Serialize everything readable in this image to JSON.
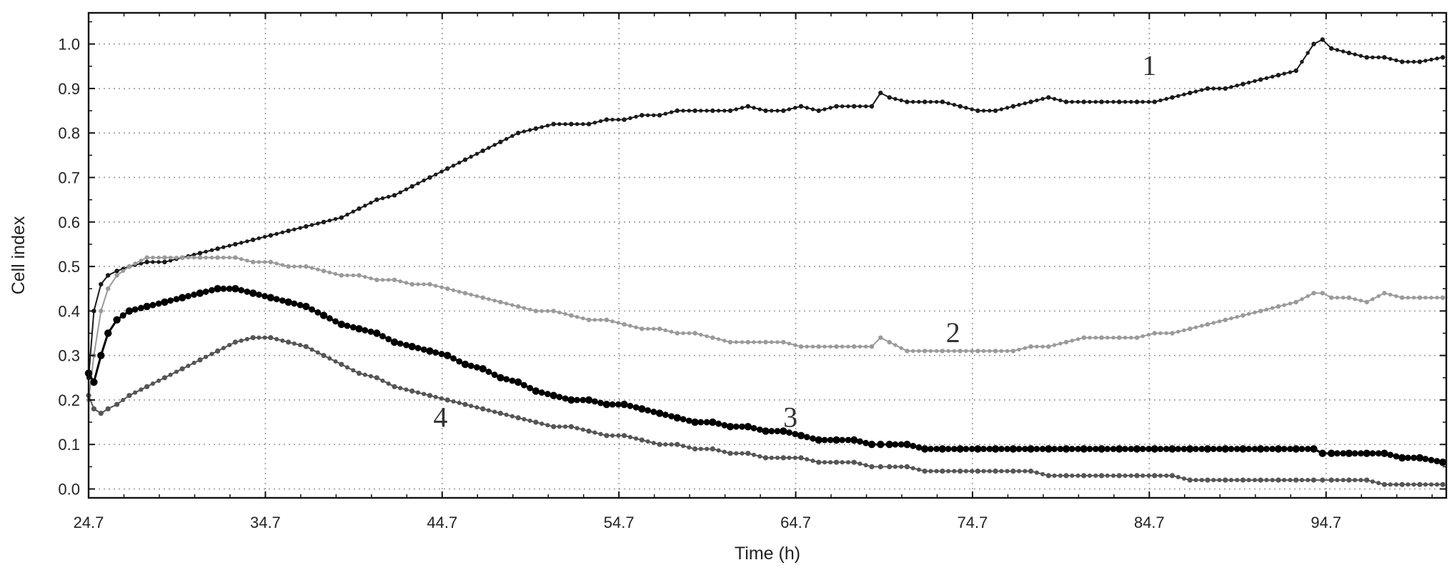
{
  "chart_data": {
    "type": "line",
    "title": "",
    "xlabel": "Time (h)",
    "ylabel": "Cell index",
    "xlim": [
      24.7,
      101.5
    ],
    "ylim": [
      -0.02,
      1.07
    ],
    "xticks": [
      24.7,
      34.7,
      44.7,
      54.7,
      64.7,
      74.7,
      84.7,
      94.7
    ],
    "xtick_labels": [
      "24.7",
      "34.7",
      "44.7",
      "54.7",
      "64.7",
      "74.7",
      "84.7",
      "94.7"
    ],
    "yticks": [
      0.0,
      0.1,
      0.2,
      0.3,
      0.4,
      0.5,
      0.6,
      0.7,
      0.8,
      0.9,
      1.0
    ],
    "ytick_labels": [
      "0.0",
      "0.1",
      "0.2",
      "0.3",
      "0.4",
      "0.5",
      "0.6",
      "0.7",
      "0.8",
      "0.9",
      "1.0"
    ],
    "grid": true,
    "legend": "none",
    "series": [
      {
        "label": "1",
        "label_at": [
          84.7,
          0.93
        ],
        "color": "#1a1a1a",
        "marker_size": 3.2,
        "stroke_width": 2,
        "x": [
          24.7,
          25.0,
          25.4,
          25.8,
          26.3,
          27.0,
          28.0,
          29.0,
          30.0,
          31.0,
          32.0,
          33.0,
          34.0,
          35.0,
          36.0,
          37.0,
          38.0,
          39.0,
          40.0,
          41.0,
          42.0,
          43.0,
          44.0,
          45.0,
          46.0,
          47.0,
          48.0,
          49.0,
          50.0,
          51.0,
          52.0,
          53.0,
          54.0,
          55.0,
          56.0,
          57.0,
          58.0,
          59.0,
          60.0,
          61.0,
          62.0,
          63.0,
          64.0,
          65.0,
          66.0,
          67.0,
          68.0,
          69.0,
          69.5,
          70.0,
          71.0,
          72.0,
          73.0,
          74.0,
          75.0,
          76.0,
          77.0,
          78.0,
          79.0,
          80.0,
          81.0,
          82.0,
          83.0,
          84.0,
          85.0,
          86.0,
          87.0,
          88.0,
          89.0,
          90.0,
          91.0,
          92.0,
          93.0,
          94.0,
          94.5,
          95.0,
          96.0,
          97.0,
          98.0,
          99.0,
          100.0,
          101.3
        ],
        "y": [
          0.25,
          0.4,
          0.46,
          0.48,
          0.49,
          0.5,
          0.51,
          0.51,
          0.52,
          0.53,
          0.54,
          0.55,
          0.56,
          0.57,
          0.58,
          0.59,
          0.6,
          0.61,
          0.63,
          0.65,
          0.66,
          0.68,
          0.7,
          0.72,
          0.74,
          0.76,
          0.78,
          0.8,
          0.81,
          0.82,
          0.82,
          0.82,
          0.83,
          0.83,
          0.84,
          0.84,
          0.85,
          0.85,
          0.85,
          0.85,
          0.86,
          0.85,
          0.85,
          0.86,
          0.85,
          0.86,
          0.86,
          0.86,
          0.89,
          0.88,
          0.87,
          0.87,
          0.87,
          0.86,
          0.85,
          0.85,
          0.86,
          0.87,
          0.88,
          0.87,
          0.87,
          0.87,
          0.87,
          0.87,
          0.87,
          0.88,
          0.89,
          0.9,
          0.9,
          0.91,
          0.92,
          0.93,
          0.94,
          1.0,
          1.01,
          0.99,
          0.98,
          0.97,
          0.97,
          0.96,
          0.96,
          0.97
        ]
      },
      {
        "label": "2",
        "label_at": [
          73.6,
          0.33
        ],
        "color": "#9a9a9a",
        "marker_size": 3.2,
        "stroke_width": 2,
        "x": [
          24.7,
          25.0,
          25.4,
          25.8,
          26.3,
          27.0,
          28.0,
          29.0,
          30.0,
          31.0,
          32.0,
          33.0,
          34.0,
          35.0,
          36.0,
          37.0,
          38.0,
          39.0,
          40.0,
          41.0,
          42.0,
          43.0,
          44.0,
          45.0,
          46.0,
          47.0,
          48.0,
          49.0,
          50.0,
          51.0,
          52.0,
          53.0,
          54.0,
          55.0,
          56.0,
          57.0,
          58.0,
          59.0,
          60.0,
          61.0,
          62.0,
          63.0,
          64.0,
          65.0,
          66.0,
          67.0,
          68.0,
          69.0,
          69.5,
          70.0,
          71.0,
          72.0,
          73.0,
          74.0,
          75.0,
          76.0,
          77.0,
          78.0,
          79.0,
          80.0,
          81.0,
          82.0,
          83.0,
          84.0,
          85.0,
          86.0,
          87.0,
          88.0,
          89.0,
          90.0,
          91.0,
          92.0,
          93.0,
          94.0,
          94.5,
          95.0,
          96.0,
          97.0,
          98.0,
          99.0,
          100.0,
          101.3
        ],
        "y": [
          0.2,
          0.3,
          0.4,
          0.45,
          0.48,
          0.5,
          0.52,
          0.52,
          0.52,
          0.52,
          0.52,
          0.52,
          0.51,
          0.51,
          0.5,
          0.5,
          0.49,
          0.48,
          0.48,
          0.47,
          0.47,
          0.46,
          0.46,
          0.45,
          0.44,
          0.43,
          0.42,
          0.41,
          0.4,
          0.4,
          0.39,
          0.38,
          0.38,
          0.37,
          0.36,
          0.36,
          0.35,
          0.35,
          0.34,
          0.33,
          0.33,
          0.33,
          0.33,
          0.32,
          0.32,
          0.32,
          0.32,
          0.32,
          0.34,
          0.33,
          0.31,
          0.31,
          0.31,
          0.31,
          0.31,
          0.31,
          0.31,
          0.32,
          0.32,
          0.33,
          0.34,
          0.34,
          0.34,
          0.34,
          0.35,
          0.35,
          0.36,
          0.37,
          0.38,
          0.39,
          0.4,
          0.41,
          0.42,
          0.44,
          0.44,
          0.43,
          0.43,
          0.42,
          0.44,
          0.43,
          0.43,
          0.43
        ]
      },
      {
        "label": "3",
        "label_at": [
          64.4,
          0.14
        ],
        "color": "#000000",
        "marker_size": 5.2,
        "stroke_width": 3,
        "x": [
          24.7,
          25.0,
          25.4,
          25.8,
          26.3,
          27.0,
          28.0,
          29.0,
          30.0,
          31.0,
          32.0,
          33.0,
          34.0,
          35.0,
          36.0,
          37.0,
          38.0,
          39.0,
          40.0,
          41.0,
          42.0,
          43.0,
          44.0,
          45.0,
          46.0,
          47.0,
          48.0,
          49.0,
          50.0,
          51.0,
          52.0,
          53.0,
          54.0,
          55.0,
          56.0,
          57.0,
          58.0,
          59.0,
          60.0,
          61.0,
          62.0,
          63.0,
          64.0,
          65.0,
          66.0,
          67.0,
          68.0,
          69.0,
          69.5,
          70.0,
          71.0,
          72.0,
          73.0,
          74.0,
          75.0,
          76.0,
          77.0,
          78.0,
          79.0,
          80.0,
          81.0,
          82.0,
          83.0,
          84.0,
          85.0,
          86.0,
          87.0,
          88.0,
          89.0,
          90.0,
          91.0,
          92.0,
          93.0,
          94.0,
          94.5,
          95.0,
          96.0,
          97.0,
          98.0,
          99.0,
          100.0,
          101.3
        ],
        "y": [
          0.26,
          0.24,
          0.3,
          0.35,
          0.38,
          0.4,
          0.41,
          0.42,
          0.43,
          0.44,
          0.45,
          0.45,
          0.44,
          0.43,
          0.42,
          0.41,
          0.39,
          0.37,
          0.36,
          0.35,
          0.33,
          0.32,
          0.31,
          0.3,
          0.28,
          0.27,
          0.25,
          0.24,
          0.22,
          0.21,
          0.2,
          0.2,
          0.19,
          0.19,
          0.18,
          0.17,
          0.16,
          0.15,
          0.15,
          0.14,
          0.14,
          0.13,
          0.13,
          0.12,
          0.11,
          0.11,
          0.11,
          0.1,
          0.1,
          0.1,
          0.1,
          0.09,
          0.09,
          0.09,
          0.09,
          0.09,
          0.09,
          0.09,
          0.09,
          0.09,
          0.09,
          0.09,
          0.09,
          0.09,
          0.09,
          0.09,
          0.09,
          0.09,
          0.09,
          0.09,
          0.09,
          0.09,
          0.09,
          0.09,
          0.08,
          0.08,
          0.08,
          0.08,
          0.08,
          0.07,
          0.07,
          0.06
        ]
      },
      {
        "label": "4",
        "label_at": [
          44.6,
          0.14
        ],
        "color": "#555555",
        "marker_size": 3.6,
        "stroke_width": 2,
        "x": [
          24.7,
          25.0,
          25.4,
          25.8,
          26.3,
          27.0,
          28.0,
          29.0,
          30.0,
          31.0,
          32.0,
          33.0,
          34.0,
          35.0,
          36.0,
          37.0,
          38.0,
          39.0,
          40.0,
          41.0,
          42.0,
          43.0,
          44.0,
          45.0,
          46.0,
          47.0,
          48.0,
          49.0,
          50.0,
          51.0,
          52.0,
          53.0,
          54.0,
          55.0,
          56.0,
          57.0,
          58.0,
          59.0,
          60.0,
          61.0,
          62.0,
          63.0,
          64.0,
          65.0,
          66.0,
          67.0,
          68.0,
          69.0,
          69.5,
          70.0,
          71.0,
          72.0,
          73.0,
          74.0,
          75.0,
          76.0,
          77.0,
          78.0,
          79.0,
          80.0,
          81.0,
          82.0,
          83.0,
          84.0,
          85.0,
          86.0,
          87.0,
          88.0,
          89.0,
          90.0,
          91.0,
          92.0,
          93.0,
          94.0,
          94.5,
          95.0,
          96.0,
          97.0,
          98.0,
          99.0,
          100.0,
          101.3
        ],
        "y": [
          0.21,
          0.18,
          0.17,
          0.18,
          0.19,
          0.21,
          0.23,
          0.25,
          0.27,
          0.29,
          0.31,
          0.33,
          0.34,
          0.34,
          0.33,
          0.32,
          0.3,
          0.28,
          0.26,
          0.25,
          0.23,
          0.22,
          0.21,
          0.2,
          0.19,
          0.18,
          0.17,
          0.16,
          0.15,
          0.14,
          0.14,
          0.13,
          0.12,
          0.12,
          0.11,
          0.1,
          0.1,
          0.09,
          0.09,
          0.08,
          0.08,
          0.07,
          0.07,
          0.07,
          0.06,
          0.06,
          0.06,
          0.05,
          0.05,
          0.05,
          0.05,
          0.04,
          0.04,
          0.04,
          0.04,
          0.04,
          0.04,
          0.04,
          0.03,
          0.03,
          0.03,
          0.03,
          0.03,
          0.03,
          0.03,
          0.03,
          0.02,
          0.02,
          0.02,
          0.02,
          0.02,
          0.02,
          0.02,
          0.02,
          0.02,
          0.02,
          0.02,
          0.02,
          0.01,
          0.01,
          0.01,
          0.01
        ]
      }
    ]
  }
}
